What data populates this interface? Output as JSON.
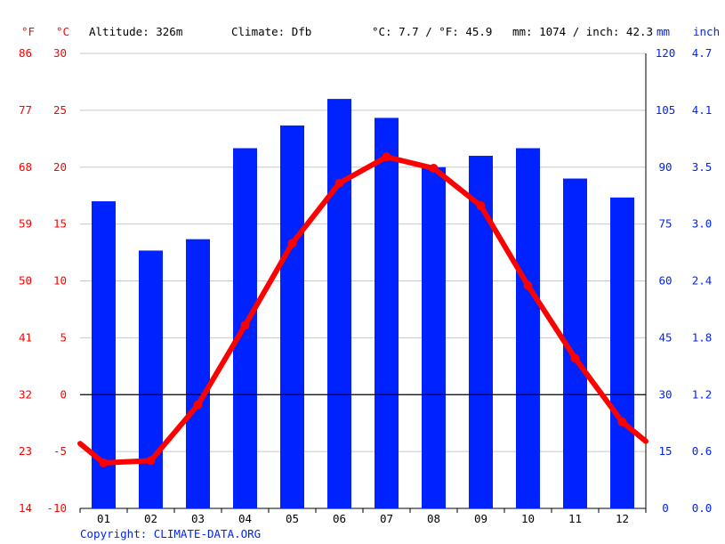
{
  "header": {
    "altitude": "Altitude: 326m",
    "climate": "Climate: Dfb",
    "temp_avg": "°C: 7.7 / °F: 45.9",
    "precip_total": "mm: 1074 / inch: 42.3"
  },
  "axis_units": {
    "fahrenheit": "°F",
    "celsius": "°C",
    "mm": "mm",
    "inch": "inch"
  },
  "footer": {
    "copyright": "Copyright: CLIMATE-DATA.ORG"
  },
  "colors": {
    "temperature": "#ff0000",
    "precipitation": "#0022ff",
    "zero_line": "#000000",
    "grid": "#c8c8c8"
  },
  "chart_data": {
    "type": "bar",
    "categories": [
      "01",
      "02",
      "03",
      "04",
      "05",
      "06",
      "07",
      "08",
      "09",
      "10",
      "11",
      "12"
    ],
    "series": [
      {
        "type": "bar",
        "axis": "right",
        "unit": "mm",
        "values": [
          81,
          68,
          71,
          95,
          101,
          108,
          103,
          90,
          93,
          95,
          87,
          82
        ]
      },
      {
        "type": "line",
        "axis": "left",
        "unit": "°C",
        "values": [
          -6.0,
          -5.8,
          -0.9,
          6.1,
          13.3,
          18.6,
          20.9,
          19.9,
          16.6,
          9.6,
          3.2,
          -2.4
        ],
        "edge_start": -4.3,
        "edge_end": -4.1
      }
    ],
    "y_left": {
      "unit": "°C",
      "range": [
        -10,
        30
      ],
      "ticks": [
        -10,
        -5,
        0,
        5,
        10,
        15,
        20,
        25,
        30
      ]
    },
    "y_left_outer": {
      "unit": "°F",
      "ticks": [
        14,
        23,
        32,
        41,
        50,
        59,
        68,
        77,
        86
      ]
    },
    "y_right": {
      "unit": "mm",
      "range": [
        0,
        120
      ],
      "ticks": [
        0,
        15,
        30,
        45,
        60,
        75,
        90,
        105,
        120
      ]
    },
    "y_right_outer": {
      "unit": "inch",
      "ticks": [
        "0.0",
        "0.6",
        "1.2",
        "1.8",
        "2.4",
        "3.0",
        "3.5",
        "4.1",
        "4.7"
      ]
    },
    "grid": true
  }
}
